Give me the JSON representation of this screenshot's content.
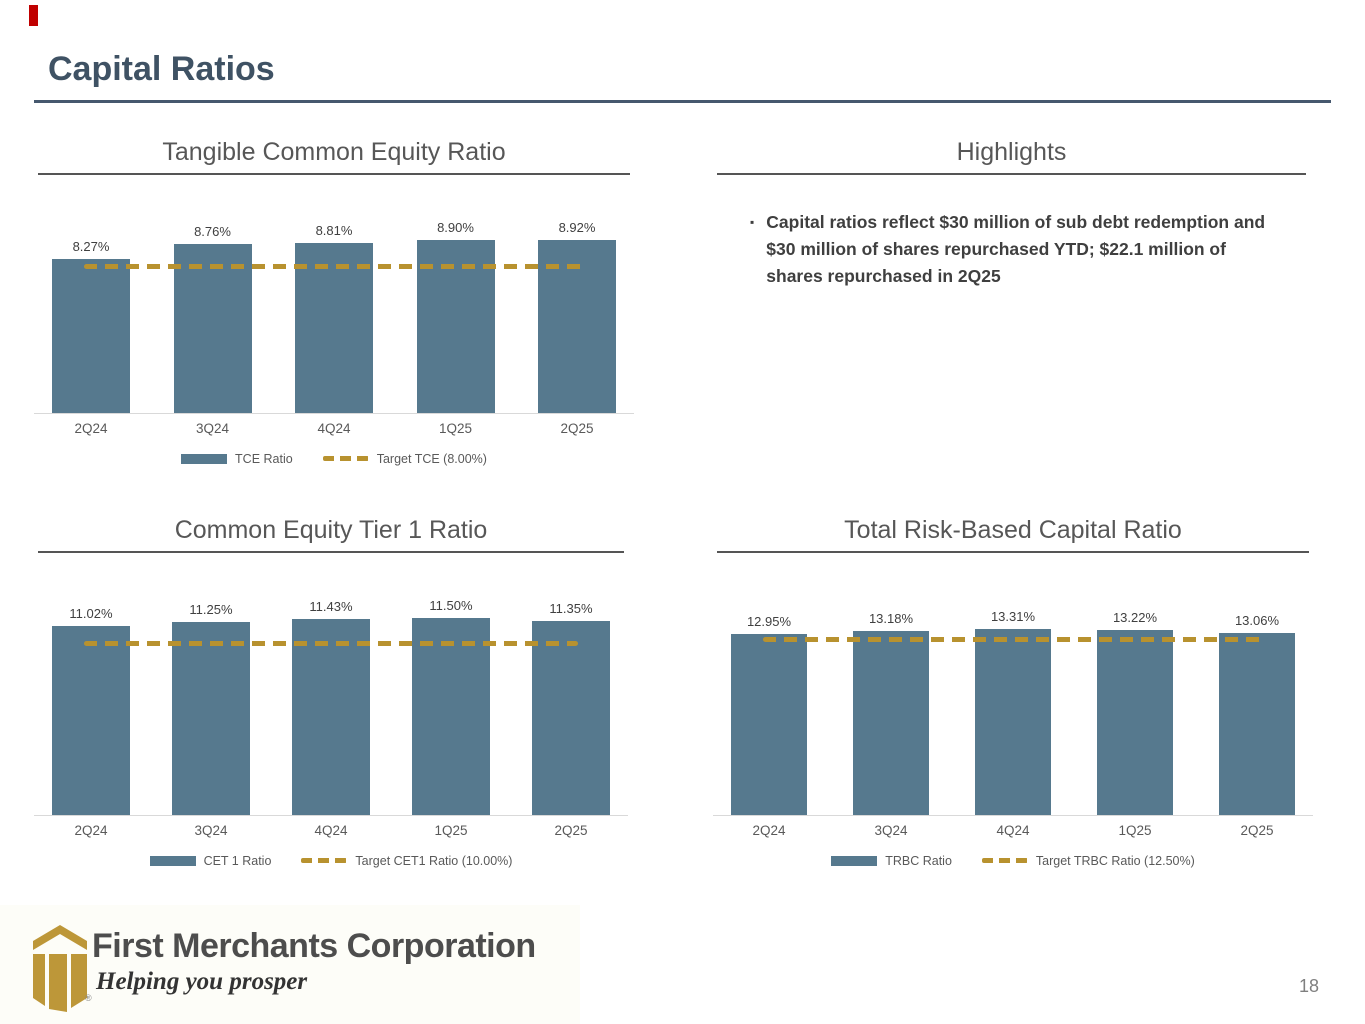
{
  "slide": {
    "title": "Capital Ratios",
    "page_number": "18"
  },
  "colors": {
    "bar": "#56798e",
    "target": "#b8922f",
    "header_accent": "#3f5264"
  },
  "highlights": {
    "title": "Highlights",
    "bullet_glyph": "▪",
    "bullet": "Capital ratios reflect $30 million of sub debt redemption and $30 million of shares repurchased YTD; $22.1 million of shares repurchased in 2Q25"
  },
  "logo": {
    "company": "First Merchants Corporation",
    "tagline": "Helping you prosper",
    "registered_mark": "®"
  },
  "chart_data": [
    {
      "type": "bar",
      "title": "Tangible Common Equity Ratio",
      "categories": [
        "2Q24",
        "3Q24",
        "4Q24",
        "1Q25",
        "2Q25"
      ],
      "values": [
        8.27,
        8.76,
        8.81,
        8.9,
        8.92
      ],
      "data_labels": [
        "8.27%",
        "8.76%",
        "8.81%",
        "8.90%",
        "8.92%"
      ],
      "series_label": "TCE Ratio",
      "target": {
        "label": "Target TCE (8.00%)",
        "value": 8.0
      },
      "ylim": [
        3.0,
        9.5
      ],
      "grid": false,
      "legend_position": "bottom"
    },
    {
      "type": "bar",
      "title": "Common Equity Tier 1 Ratio",
      "categories": [
        "2Q24",
        "3Q24",
        "4Q24",
        "1Q25",
        "2Q25"
      ],
      "values": [
        11.02,
        11.25,
        11.43,
        11.5,
        11.35
      ],
      "data_labels": [
        "11.02%",
        "11.25%",
        "11.43%",
        "11.50%",
        "11.35%"
      ],
      "series_label": "CET 1 Ratio",
      "target": {
        "label": "Target CET1 Ratio (10.00%)",
        "value": 10.0
      },
      "ylim": [
        0,
        12.1
      ],
      "grid": false,
      "legend_position": "bottom"
    },
    {
      "type": "bar",
      "title": "Total Risk-Based Capital Ratio",
      "categories": [
        "2Q24",
        "3Q24",
        "4Q24",
        "1Q25",
        "2Q25"
      ],
      "values": [
        12.95,
        13.18,
        13.31,
        13.22,
        13.06
      ],
      "data_labels": [
        "12.95%",
        "13.18%",
        "13.31%",
        "13.22%",
        "13.06%"
      ],
      "series_label": "TRBC Ratio",
      "target": {
        "label": "Target TRBC Ratio (12.50%)",
        "value": 12.5
      },
      "ylim": [
        0,
        14.7
      ],
      "grid": false,
      "legend_position": "bottom"
    }
  ]
}
